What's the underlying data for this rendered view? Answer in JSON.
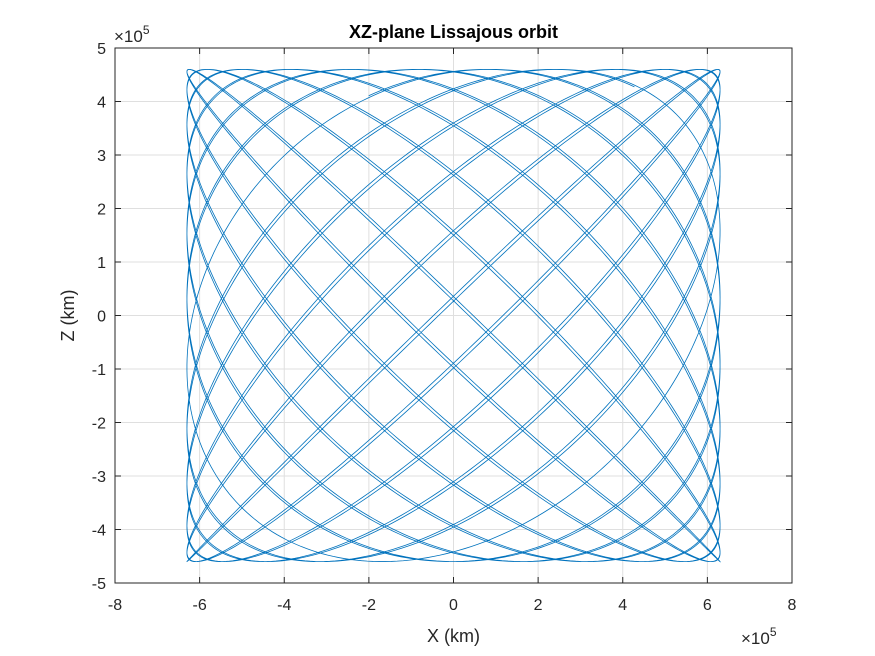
{
  "chart_data": {
    "type": "line",
    "title": "XZ-plane Lissajous orbit",
    "xlabel": "X (km)",
    "ylabel": "Z (km)",
    "xlim": [
      -800000,
      800000
    ],
    "ylim": [
      -500000,
      500000
    ],
    "x_ticks": [
      -8,
      -6,
      -4,
      -2,
      0,
      2,
      4,
      6,
      8
    ],
    "y_ticks": [
      -5,
      -4,
      -3,
      -2,
      -1,
      0,
      1,
      2,
      3,
      4,
      5
    ],
    "x_exponent": {
      "base": "×10",
      "power": "5"
    },
    "y_exponent": {
      "base": "×10",
      "power": "5"
    },
    "grid": true,
    "box": true,
    "series": [
      {
        "color": "#0072BD",
        "curve": "lissajous",
        "x_amplitude": 630000,
        "z_amplitude": 460000,
        "x_angular_rate": 1.0,
        "z_angular_rate": 1.0435,
        "x_phase": -0.3238,
        "z_phase": 1.104,
        "t_start": 0,
        "t_end": 139.3,
        "start_point": [
          -200000,
          412000
        ]
      }
    ]
  }
}
